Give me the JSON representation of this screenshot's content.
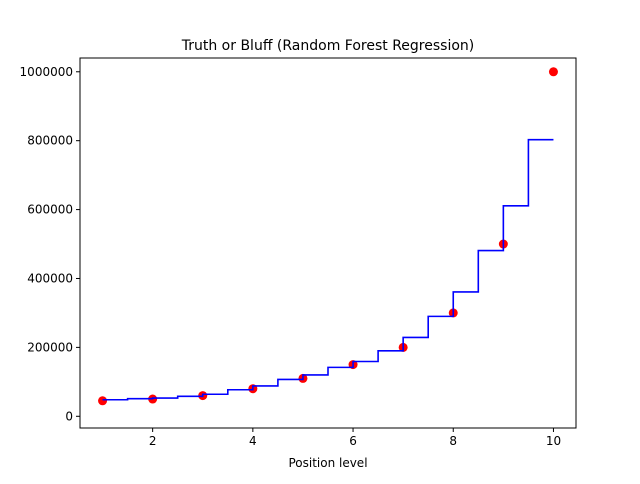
{
  "chart_data": {
    "type": "scatter+step",
    "title": "Truth or Bluff (Random Forest Regression)",
    "xlabel": "Position level",
    "ylabel": "",
    "xlim": [
      0.55,
      10.45
    ],
    "ylim": [
      -34000,
      1040000
    ],
    "xticks": [
      2,
      4,
      6,
      8,
      10
    ],
    "yticks": [
      0,
      200000,
      400000,
      600000,
      800000,
      1000000
    ],
    "grid": false,
    "scatter": {
      "color": "#ff0000",
      "x": [
        1,
        2,
        3,
        4,
        5,
        6,
        7,
        8,
        9,
        10
      ],
      "y": [
        45000,
        50000,
        60000,
        80000,
        110000,
        150000,
        200000,
        300000,
        500000,
        1000000
      ]
    },
    "prediction": {
      "color": "#0000ff",
      "steps": [
        {
          "from": 1.0,
          "to": 1.5,
          "y": 48000
        },
        {
          "from": 1.5,
          "to": 2.0,
          "y": 51000
        },
        {
          "from": 2.0,
          "to": 2.5,
          "y": 53000
        },
        {
          "from": 2.5,
          "to": 3.0,
          "y": 58000
        },
        {
          "from": 3.0,
          "to": 3.5,
          "y": 64000
        },
        {
          "from": 3.5,
          "to": 4.0,
          "y": 77000
        },
        {
          "from": 4.0,
          "to": 4.5,
          "y": 88000
        },
        {
          "from": 4.5,
          "to": 5.0,
          "y": 107000
        },
        {
          "from": 5.0,
          "to": 5.5,
          "y": 120000
        },
        {
          "from": 5.5,
          "to": 6.0,
          "y": 142000
        },
        {
          "from": 6.0,
          "to": 6.5,
          "y": 159000
        },
        {
          "from": 6.5,
          "to": 7.0,
          "y": 190000
        },
        {
          "from": 7.0,
          "to": 7.5,
          "y": 229000
        },
        {
          "from": 7.5,
          "to": 8.0,
          "y": 290000
        },
        {
          "from": 8.0,
          "to": 8.5,
          "y": 361000
        },
        {
          "from": 8.5,
          "to": 9.0,
          "y": 481000
        },
        {
          "from": 9.0,
          "to": 9.5,
          "y": 611000
        },
        {
          "from": 9.5,
          "to": 10.0,
          "y": 803000
        }
      ]
    }
  }
}
